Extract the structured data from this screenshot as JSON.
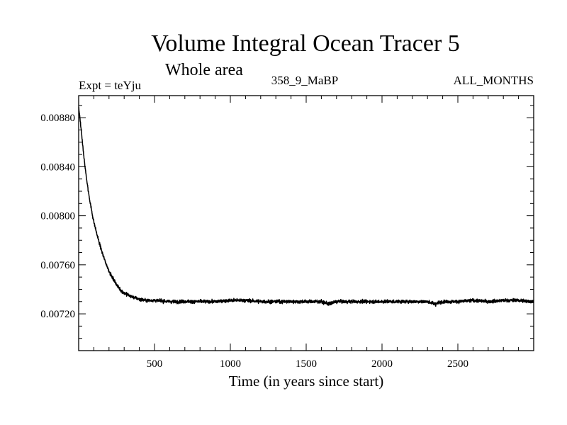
{
  "chart_data": {
    "type": "line",
    "title": "Volume Integral Ocean Tracer 5",
    "subtitle": "Whole area",
    "info_left": "Expt = teYju",
    "info_center": "358_9_MaBP",
    "info_right": "ALL_MONTHS",
    "xlabel": "Time (in years since start)",
    "ylabel": "",
    "xlim": [
      0,
      3000
    ],
    "ylim": [
      0.0069,
      0.00898
    ],
    "x_ticks": [
      500,
      1000,
      1500,
      2000,
      2500
    ],
    "x_tick_labels": [
      "500",
      "1000",
      "1500",
      "2000",
      "2500"
    ],
    "y_ticks": [
      0.0072,
      0.0076,
      0.008,
      0.0084,
      0.0088
    ],
    "y_tick_labels": [
      "0.00720",
      "0.00760",
      "0.00800",
      "0.00840",
      "0.00880"
    ],
    "grid": false,
    "legend": "none",
    "line_color": "#000000",
    "series": [
      {
        "x": [
          0,
          10,
          20,
          30,
          40,
          50,
          60,
          70,
          80,
          90,
          100,
          120,
          140,
          160,
          180,
          200,
          220,
          240,
          260,
          280,
          300,
          350,
          400,
          450,
          500,
          600,
          700,
          800,
          900,
          1000,
          1100,
          1200,
          1300,
          1400,
          1500,
          1600,
          1650,
          1700,
          1800,
          1900,
          2000,
          2100,
          2200,
          2300,
          2350,
          2400,
          2500,
          2600,
          2700,
          2800,
          2900,
          3000
        ],
        "values": [
          0.00889,
          0.00878,
          0.00866,
          0.00853,
          0.00842,
          0.00832,
          0.00823,
          0.00815,
          0.00808,
          0.00801,
          0.00795,
          0.00785,
          0.00776,
          0.00768,
          0.00761,
          0.00755,
          0.0075,
          0.00746,
          0.00742,
          0.00739,
          0.00737,
          0.00734,
          0.00732,
          0.00731,
          0.00731,
          0.0073,
          0.0073,
          0.0073,
          0.0073,
          0.00731,
          0.00731,
          0.0073,
          0.0073,
          0.0073,
          0.0073,
          0.0073,
          0.00728,
          0.0073,
          0.0073,
          0.0073,
          0.0073,
          0.0073,
          0.0073,
          0.0073,
          0.00728,
          0.0073,
          0.0073,
          0.00731,
          0.0073,
          0.00731,
          0.00731,
          0.0073
        ]
      }
    ]
  }
}
